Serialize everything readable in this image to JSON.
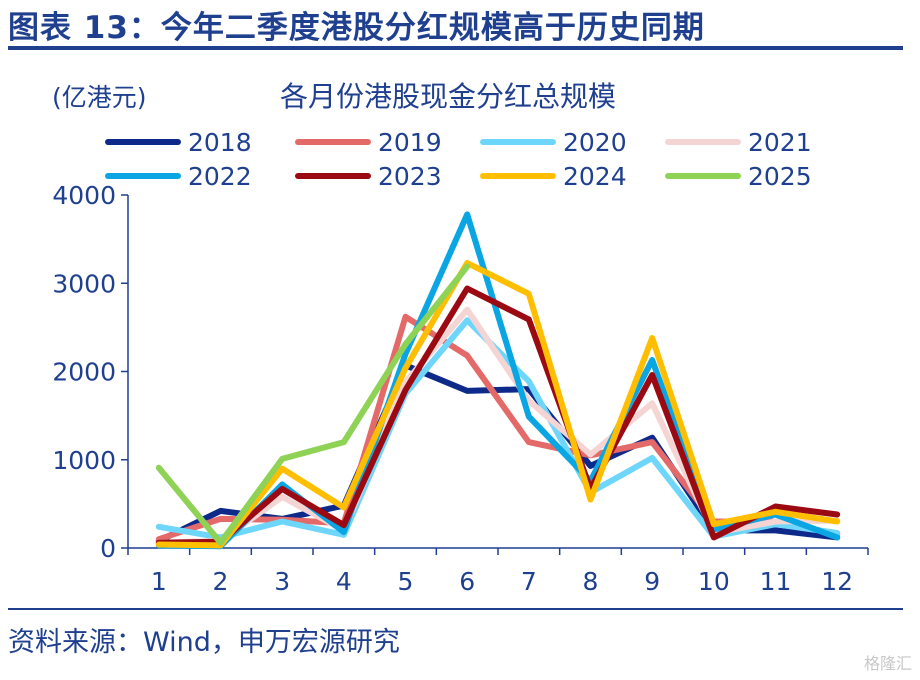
{
  "header": {
    "title": "图表 13：今年二季度港股分红规模高于历史同期"
  },
  "footer": {
    "source": "资料来源：Wind，申万宏源研究",
    "watermark": "格隆汇"
  },
  "chart_data": {
    "type": "line",
    "title": "各月份港股现金分红总规模",
    "ylabel": "(亿港元)",
    "xlabel": "",
    "x": [
      1,
      2,
      3,
      4,
      5,
      6,
      7,
      8,
      9,
      10,
      11,
      12
    ],
    "x_tick_labels": [
      "1",
      "2",
      "3",
      "4",
      "5",
      "6",
      "7",
      "8",
      "9",
      "10",
      "11",
      "12"
    ],
    "ylim": [
      0,
      4000
    ],
    "y_ticks": [
      0,
      1000,
      2000,
      3000,
      4000
    ],
    "y_tick_labels": [
      "0",
      "1000",
      "2000",
      "3000",
      "4000"
    ],
    "grid": false,
    "legend_position": "top",
    "series": [
      {
        "name": "2018",
        "color": "#0d2a8a",
        "values": [
          80,
          420,
          330,
          480,
          2070,
          1780,
          1800,
          930,
          1250,
          200,
          200,
          120
        ]
      },
      {
        "name": "2019",
        "color": "#e46a6a",
        "values": [
          100,
          330,
          320,
          280,
          2620,
          2180,
          1200,
          1050,
          1200,
          300,
          300,
          160
        ]
      },
      {
        "name": "2020",
        "color": "#6fd6fb",
        "values": [
          240,
          120,
          300,
          150,
          1750,
          2580,
          1890,
          630,
          1020,
          130,
          270,
          170
        ]
      },
      {
        "name": "2021",
        "color": "#f5d4d4",
        "values": [
          60,
          80,
          580,
          200,
          1880,
          2700,
          1670,
          1060,
          1640,
          170,
          300,
          310
        ]
      },
      {
        "name": "2022",
        "color": "#0aa6e4",
        "values": [
          30,
          20,
          720,
          180,
          2200,
          3780,
          1490,
          760,
          2130,
          210,
          380,
          120
        ]
      },
      {
        "name": "2023",
        "color": "#9b0a12",
        "values": [
          60,
          70,
          670,
          260,
          1790,
          2940,
          2590,
          670,
          1960,
          120,
          470,
          380
        ]
      },
      {
        "name": "2024",
        "color": "#ffbf00",
        "values": [
          40,
          30,
          900,
          460,
          2040,
          3230,
          2880,
          550,
          2380,
          270,
          410,
          300
        ]
      },
      {
        "name": "2025",
        "color": "#8ed256",
        "values": [
          910,
          60,
          1010,
          1200,
          2310,
          3190,
          null,
          null,
          null,
          null,
          null,
          null
        ]
      }
    ]
  }
}
